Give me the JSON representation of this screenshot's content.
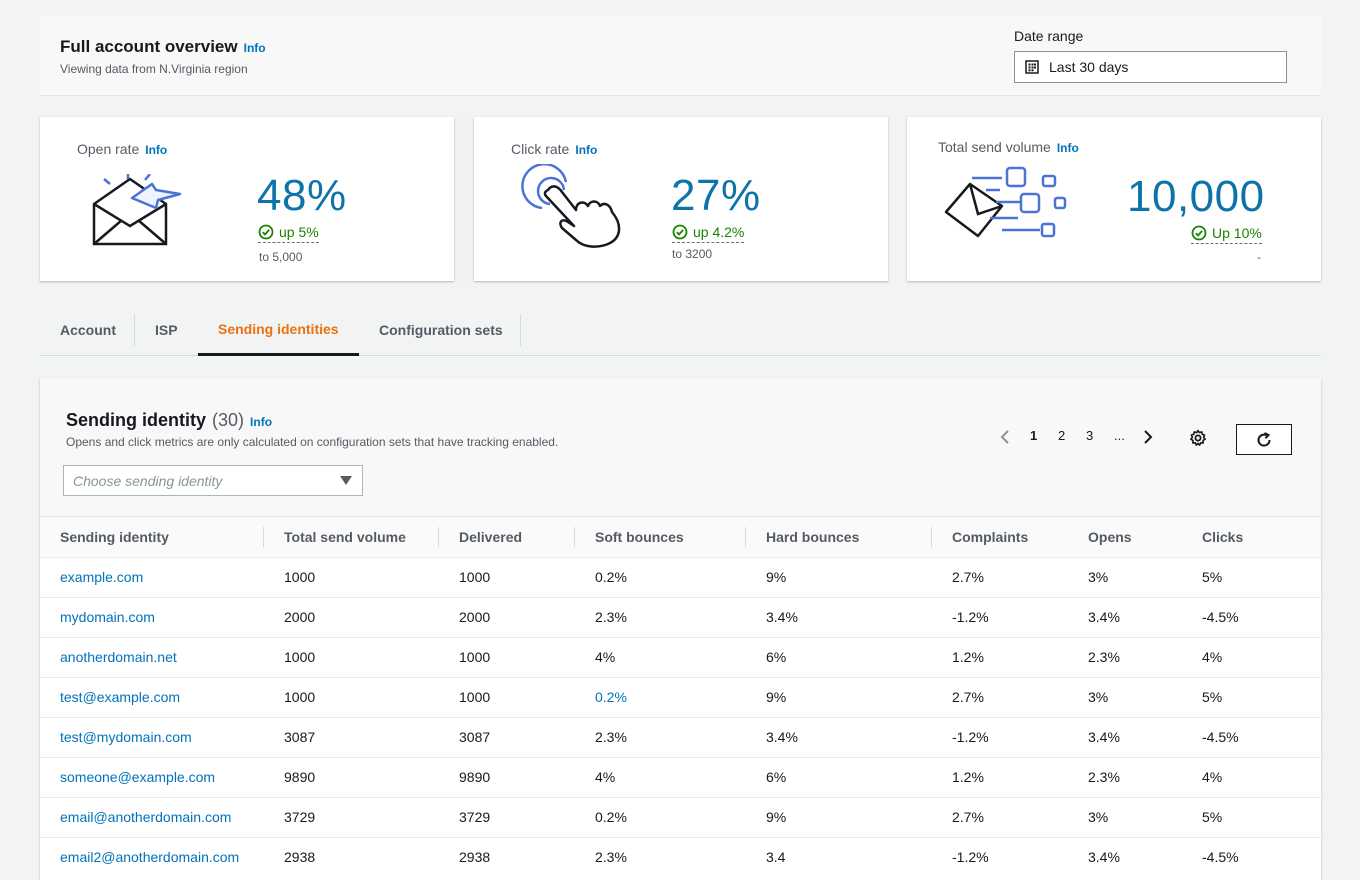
{
  "header": {
    "title": "Full account overview",
    "info": "Info",
    "subtitle": "Viewing data from N.Virginia region",
    "date_range_label": "Date range",
    "date_range_value": "Last 30 days"
  },
  "cards": [
    {
      "title": "Open rate",
      "info": "Info",
      "value": "48%",
      "delta": "up 5%",
      "sub": "to 5,000",
      "illustration": "envelope-open-icon"
    },
    {
      "title": "Click rate",
      "info": "Info",
      "value": "27%",
      "delta": "up 4.2%",
      "sub": "to 3200",
      "illustration": "hand-click-icon"
    },
    {
      "title": "Total send volume",
      "info": "Info",
      "value": "10,000",
      "delta": "Up 10%",
      "sub": "-",
      "illustration": "envelope-send-icon"
    }
  ],
  "tabs": [
    {
      "label": "Account",
      "active": false
    },
    {
      "label": "ISP",
      "active": false
    },
    {
      "label": "Sending identities",
      "active": true
    },
    {
      "label": "Configuration sets",
      "active": false
    }
  ],
  "panel": {
    "title": "Sending identity",
    "count": "(30)",
    "info": "Info",
    "description": "Opens and click metrics are only calculated on configuration sets that have tracking enabled.",
    "select_placeholder": "Choose sending identity",
    "pagination": {
      "pages": [
        "1",
        "2",
        "3",
        "..."
      ],
      "current": "1"
    }
  },
  "table": {
    "columns": [
      "Sending identity",
      "Total send volume",
      "Delivered",
      "Soft bounces",
      "Hard bounces",
      "Complaints",
      "Opens",
      "Clicks"
    ],
    "rows": [
      [
        "example.com",
        "1000",
        "1000",
        "0.2%",
        "9%",
        "2.7%",
        "3%",
        "5%"
      ],
      [
        "mydomain.com",
        "2000",
        "2000",
        "2.3%",
        "3.4%",
        "-1.2%",
        "3.4%",
        "-4.5%"
      ],
      [
        "anotherdomain.net",
        "1000",
        "1000",
        "4%",
        "6%",
        "1.2%",
        "2.3%",
        "4%"
      ],
      [
        "test@example.com",
        "1000",
        "1000",
        "0.2%",
        "9%",
        "2.7%",
        "3%",
        "5%"
      ],
      [
        "test@mydomain.com",
        "3087",
        "3087",
        "2.3%",
        "3.4%",
        "-1.2%",
        "3.4%",
        "-4.5%"
      ],
      [
        "someone@example.com",
        "9890",
        "9890",
        "4%",
        "6%",
        "1.2%",
        "2.3%",
        "4%"
      ],
      [
        "email@anotherdomain.com",
        "3729",
        "3729",
        "0.2%",
        "9%",
        "2.7%",
        "3%",
        "5%"
      ],
      [
        "email2@anotherdomain.com",
        "2938",
        "2938",
        "2.3%",
        "3.4",
        "-1.2%",
        "3.4%",
        "-4.5%"
      ]
    ]
  },
  "colors": {
    "link": "#0073bb",
    "accent_tab": "#ec7211",
    "positive": "#1d8102",
    "metric": "#0f73ab"
  }
}
